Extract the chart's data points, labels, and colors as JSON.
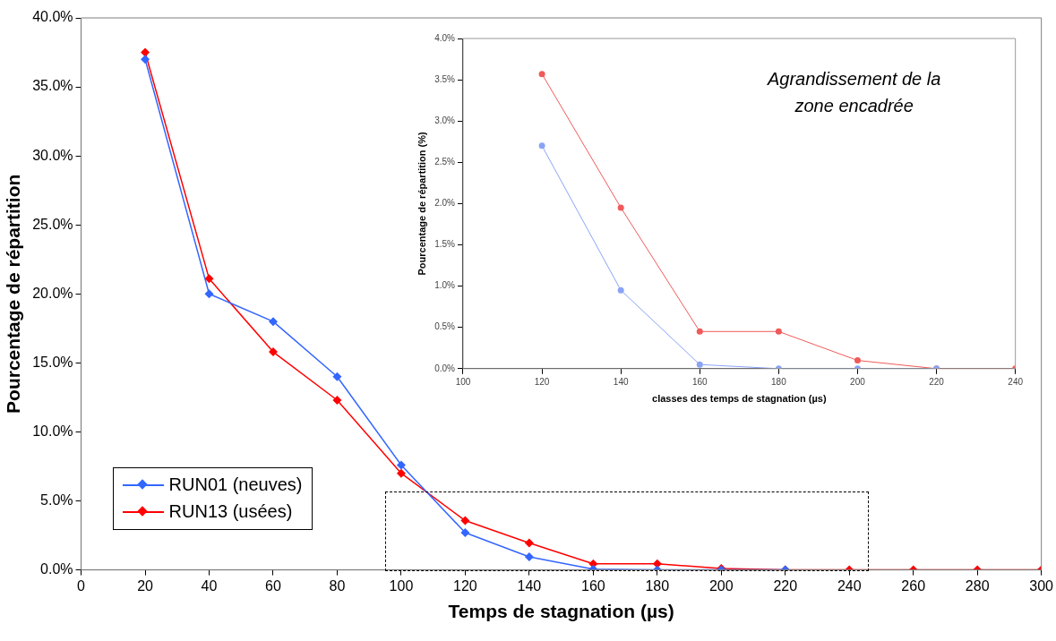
{
  "chart_data": [
    {
      "type": "line",
      "xlabel": "Temps de stagnation (µs)",
      "ylabel": "Pourcentage de répartition",
      "x": [
        20,
        40,
        60,
        80,
        100,
        120,
        140,
        160,
        180,
        200,
        220,
        240,
        260,
        280,
        300
      ],
      "series": [
        {
          "name": "RUN01 (neuves)",
          "color": "#3366ff",
          "values": [
            37.0,
            20.0,
            18.0,
            14.0,
            7.6,
            2.7,
            0.95,
            0.05,
            0,
            0,
            0,
            null,
            null,
            null,
            null
          ]
        },
        {
          "name": "RUN13 (usées)",
          "color": "#ff0000",
          "values": [
            37.5,
            21.1,
            15.8,
            12.3,
            7.0,
            3.57,
            1.95,
            0.45,
            0.45,
            0.1,
            0,
            0,
            0,
            0,
            0
          ]
        }
      ],
      "xlim": [
        0,
        300
      ],
      "xticks": [
        0,
        20,
        40,
        60,
        80,
        100,
        120,
        140,
        160,
        180,
        200,
        220,
        240,
        260,
        280,
        300
      ],
      "ylim": [
        0,
        40
      ],
      "yticks": [
        {
          "value": 0,
          "label": "0.0%"
        },
        {
          "value": 5,
          "label": "5.0%"
        },
        {
          "value": 10,
          "label": "10.0%"
        },
        {
          "value": 15,
          "label": "15.0%"
        },
        {
          "value": 20,
          "label": "20.0%"
        },
        {
          "value": 25,
          "label": "25.0%"
        },
        {
          "value": 30,
          "label": "30.0%"
        },
        {
          "value": 35,
          "label": "35.0%"
        },
        {
          "value": 40,
          "label": "40.0%"
        }
      ],
      "grid": false,
      "legend": "bottom left",
      "marker": "diamond",
      "line_style": "solid"
    },
    {
      "type": "line",
      "xlabel": "classes des temps de stagnation (µs)",
      "ylabel": "Pourcentage de répartition (%)",
      "x": [
        120,
        140,
        160,
        180,
        200,
        220,
        240
      ],
      "series": [
        {
          "color": "#8aa4f5",
          "values": [
            2.7,
            0.95,
            0.05,
            0,
            0,
            0,
            null
          ]
        },
        {
          "color": "#f05a5a",
          "values": [
            3.57,
            1.95,
            0.45,
            0.45,
            0.1,
            0,
            0
          ]
        }
      ],
      "xlim": [
        100,
        240
      ],
      "xticks": [
        100,
        120,
        140,
        160,
        180,
        200,
        220,
        240
      ],
      "ylim": [
        0,
        4
      ],
      "yticks": [
        {
          "value": 0,
          "label": "0.0%"
        },
        {
          "value": 0.5,
          "label": "0.5%"
        },
        {
          "value": 1,
          "label": "1.0%"
        },
        {
          "value": 1.5,
          "label": "1.5%"
        },
        {
          "value": 2,
          "label": "2.0%"
        },
        {
          "value": 2.5,
          "label": "2.5%"
        },
        {
          "value": 3,
          "label": "3.0%"
        },
        {
          "value": 3.5,
          "label": "3.5%"
        },
        {
          "value": 4,
          "label": "4.0%"
        }
      ],
      "grid": false,
      "marker": "circle",
      "line_style": "solid",
      "annotations": [
        "Agrandissement de la zone encadrée"
      ]
    }
  ]
}
